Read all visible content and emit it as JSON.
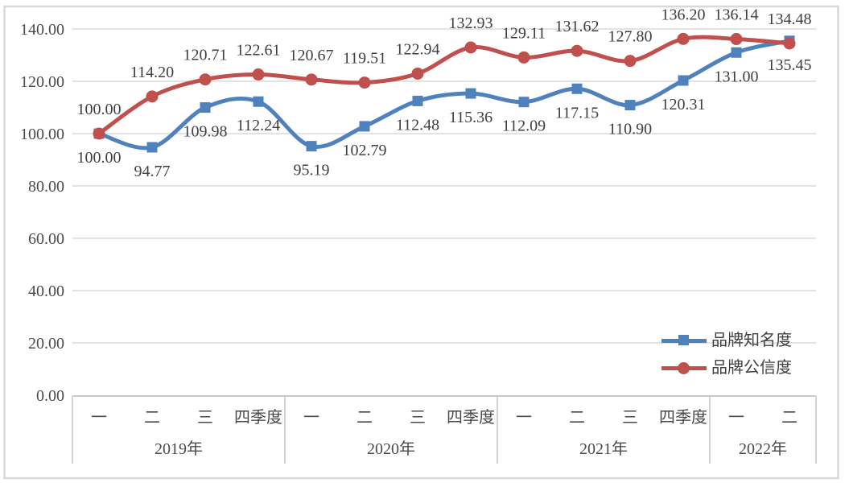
{
  "chart_data": {
    "type": "line",
    "title": "",
    "smoothed_lines": true,
    "series": [
      {
        "id": "brand-awareness",
        "name": "品牌知名度",
        "color": "#4F81BD",
        "marker": "square",
        "data_label_position": "below",
        "values": [
          100.0,
          94.77,
          109.98,
          112.24,
          95.19,
          102.79,
          112.48,
          115.36,
          112.09,
          117.15,
          110.9,
          120.31,
          131.0,
          135.45
        ]
      },
      {
        "id": "brand-credibility",
        "name": "品牌公信度",
        "color": "#C0504D",
        "marker": "circle",
        "data_label_position": "above",
        "values": [
          100.0,
          114.2,
          120.71,
          122.61,
          120.67,
          119.51,
          122.94,
          132.93,
          129.11,
          131.62,
          127.8,
          136.2,
          136.14,
          134.48
        ]
      }
    ],
    "x_axis": {
      "groups": [
        {
          "year": "2019年",
          "quarters": [
            "一",
            "二",
            "三",
            "四季度"
          ]
        },
        {
          "year": "2020年",
          "quarters": [
            "一",
            "二",
            "三",
            "四季度"
          ]
        },
        {
          "year": "2021年",
          "quarters": [
            "一",
            "二",
            "三",
            "四季度"
          ]
        },
        {
          "year": "2022年",
          "quarters": [
            "一",
            "二"
          ]
        }
      ]
    },
    "y_axis": {
      "min": 0,
      "max": 140,
      "step": 20,
      "tick_labels": [
        "0.00",
        "20.00",
        "40.00",
        "60.00",
        "80.00",
        "100.00",
        "120.00",
        "140.00"
      ]
    },
    "grid": true,
    "data_label_decimals": 2,
    "legend_position": "right-middle",
    "colors": {
      "grid_line": "#DADADA",
      "axis_line": "#C9C9C9",
      "outer_border": "#D8D8D8",
      "text": "#3F3F3F",
      "background": "#FFFFFF"
    }
  }
}
